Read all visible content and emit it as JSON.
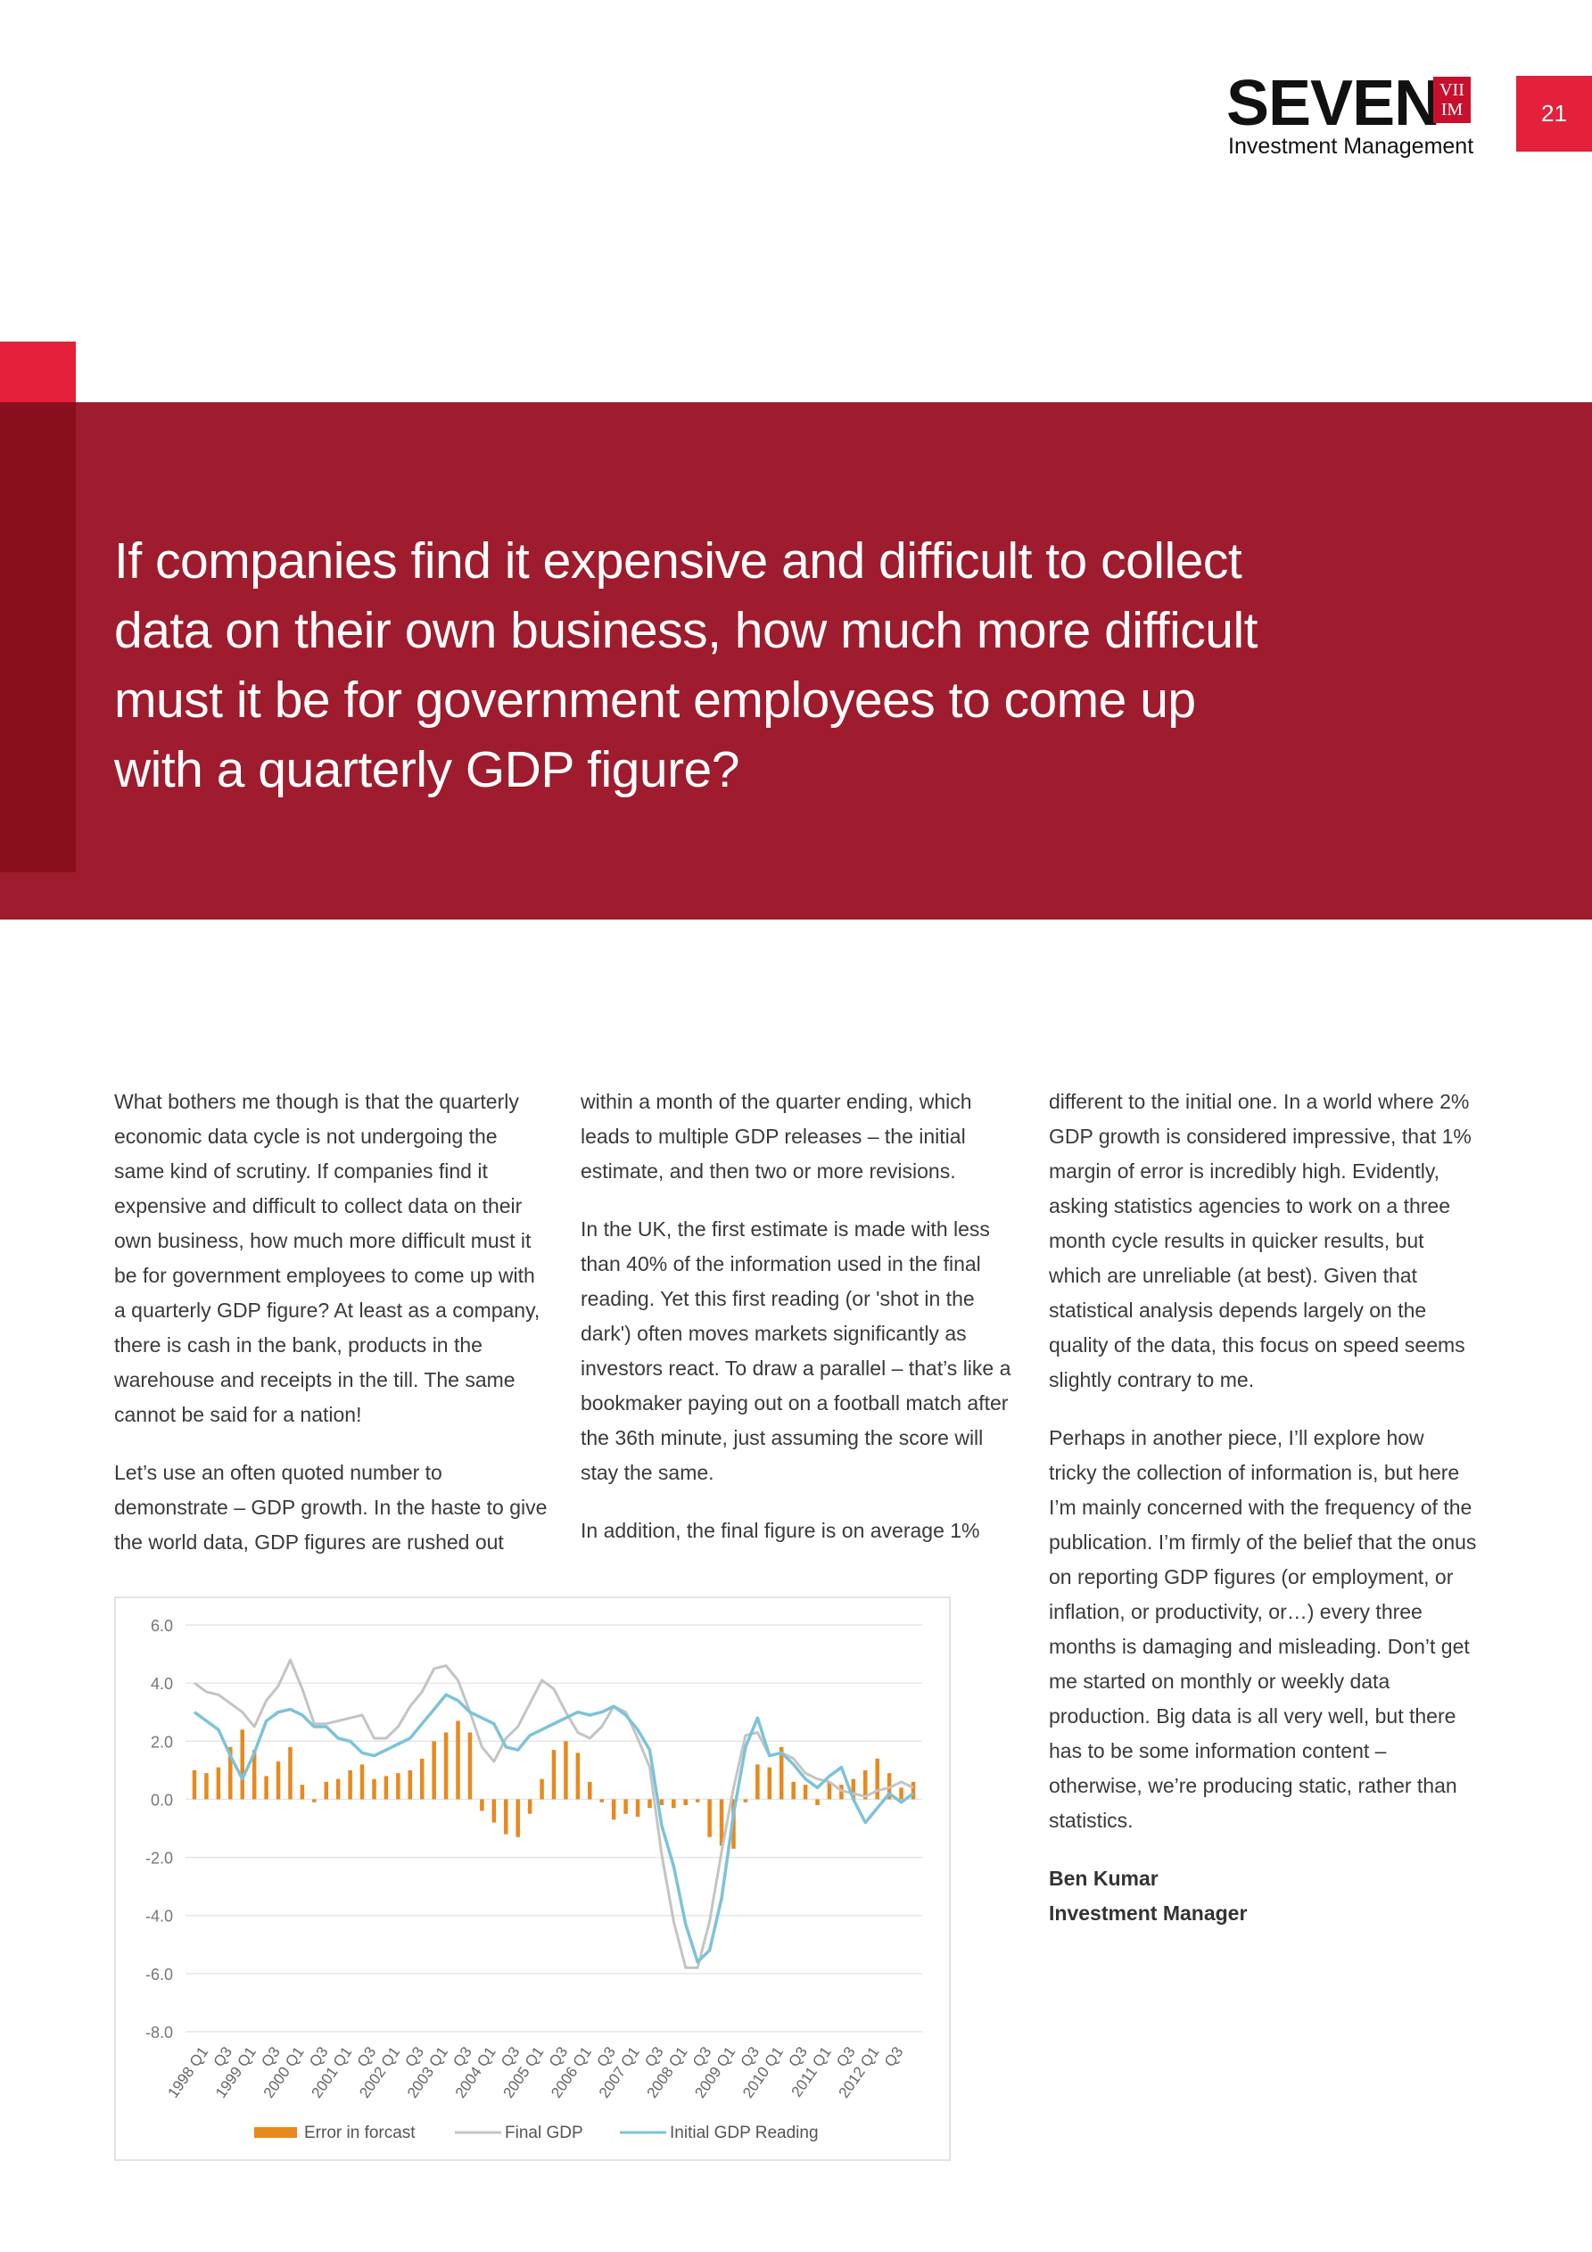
{
  "header": {
    "logo_word": "SEVEN",
    "logo_mark_top": "VII",
    "logo_mark_bottom": "IM",
    "logo_sub": "Investment Management",
    "page_number": "21",
    "brand_color": "#e4203a"
  },
  "banner": {
    "quote": "If companies find it expensive and difficult to collect data on their own business, how much more difficult must it be for government employees to come up with a quarterly GDP figure?",
    "background_color": "#9e1c2d"
  },
  "article": {
    "col1": [
      "What bothers me though is that the quarterly economic data cycle is not undergoing the same kind of scrutiny. If companies find it expensive and difficult to collect data on their own business, how much more difficult must it be for government employees to come up with a quarterly GDP figure? At least as a company, there is cash in the bank, products in the warehouse and receipts in the till. The same cannot be said for a nation!",
      "Let’s use an often quoted number to demonstrate – GDP growth. In the haste to give the world data, GDP figures are rushed out"
    ],
    "col2": [
      "within a month of the quarter ending, which leads to multiple GDP releases – the initial estimate, and then two or more revisions.",
      "In the UK, the first estimate is made with less than 40% of the information used in the final reading. Yet this first reading (or 'shot in the dark') often moves markets significantly as investors react. To draw a parallel – that’s like a bookmaker paying out on a football match after the 36th minute, just assuming the score will stay the same.",
      "In addition, the final figure is on average 1%"
    ],
    "col3": [
      "different to the initial one. In a world where 2% GDP growth is considered impressive, that 1% margin of error is incredibly high. Evidently, asking statistics agencies to work on a three month cycle results in quicker results, but which are unreliable (at best). Given that statistical analysis depends largely on the quality of the data, this focus on speed seems slightly contrary to me.",
      "Perhaps in another piece, I’ll explore how tricky the collection of information is, but here I’m mainly concerned with the frequency of the publication. I’m firmly of the belief that the onus on reporting GDP figures (or employment, or inflation, or productivity, or…) every three months is damaging and misleading. Don’t get me started on monthly or weekly data production. Big data is all very well, but there has to be some information content – otherwise, we’re producing static, rather than statistics."
    ],
    "author_name": "Ben Kumar",
    "author_title": "Investment Manager"
  },
  "chart_data": {
    "type": "bar",
    "title": "",
    "xlabel": "",
    "ylabel": "",
    "ylim": [
      -8.0,
      6.0
    ],
    "yticks": [
      "6.0",
      "4.0",
      "2.0",
      "0.0",
      "-2.0",
      "-4.0",
      "-6.0",
      "-8.0"
    ],
    "ytick_values": [
      6,
      4,
      2,
      0,
      -2,
      -4,
      -6,
      -8
    ],
    "grid": true,
    "legend_placement": "bottom",
    "x_tick_labels": [
      "1998 Q1",
      "Q3",
      "1999 Q1",
      "Q3",
      "2000 Q1",
      "Q3",
      "2001 Q1",
      "Q3",
      "2002 Q1",
      "Q3",
      "2003 Q1",
      "Q3",
      "2004 Q1",
      "Q3",
      "2005 Q1",
      "Q3",
      "2006 Q1",
      "Q3",
      "2007 Q1",
      "Q3",
      "2008 Q1",
      "Q3",
      "2009 Q1",
      "Q3",
      "2010 Q1",
      "Q3",
      "2011 Q1",
      "Q3",
      "2012 Q1",
      "Q3"
    ],
    "series": [
      {
        "name": "Error in forcast",
        "kind": "bar",
        "color": "#e8891e",
        "values": [
          1.0,
          0.9,
          1.1,
          1.8,
          2.4,
          1.7,
          0.8,
          1.3,
          1.8,
          0.5,
          -0.1,
          0.6,
          0.7,
          1.0,
          1.2,
          0.7,
          0.8,
          0.9,
          1.0,
          1.4,
          2.0,
          2.3,
          2.7,
          2.3,
          -0.4,
          -0.8,
          -1.2,
          -1.3,
          -0.5,
          0.7,
          1.7,
          2.0,
          1.6,
          0.6,
          -0.1,
          -0.7,
          -0.5,
          -0.6,
          -0.3,
          -0.2,
          -0.3,
          -0.2,
          -0.1,
          -1.3,
          -1.6,
          -1.7,
          -0.1,
          1.2,
          1.1,
          1.8,
          0.6,
          0.5,
          -0.2,
          0.6,
          0.5,
          0.7,
          1.0,
          1.4,
          0.9,
          0.4,
          0.6
        ]
      },
      {
        "name": "Final GDP",
        "kind": "line",
        "color": "#c4c4c4",
        "values": [
          4.0,
          3.7,
          3.6,
          3.3,
          3.0,
          2.5,
          3.4,
          3.9,
          4.8,
          3.8,
          2.6,
          2.6,
          2.7,
          2.8,
          2.9,
          2.1,
          2.1,
          2.5,
          3.2,
          3.7,
          4.5,
          4.6,
          4.1,
          3.0,
          1.8,
          1.3,
          2.1,
          2.5,
          3.3,
          4.1,
          3.8,
          3.0,
          2.3,
          2.1,
          2.5,
          3.2,
          3.0,
          2.1,
          1.1,
          -1.9,
          -4.2,
          -5.8,
          -5.8,
          -4.2,
          -1.8,
          0.4,
          2.2,
          2.3,
          1.5,
          1.6,
          1.4,
          0.9,
          0.7,
          0.6,
          0.3,
          0.2,
          0.1,
          0.3,
          0.4,
          0.6,
          0.4
        ]
      },
      {
        "name": "Initial GDP Reading",
        "kind": "line",
        "color": "#7cc3d8",
        "values": [
          3.0,
          2.7,
          2.4,
          1.5,
          0.7,
          1.6,
          2.7,
          3.0,
          3.1,
          2.9,
          2.5,
          2.5,
          2.1,
          2.0,
          1.6,
          1.5,
          1.7,
          1.9,
          2.1,
          2.6,
          3.1,
          3.6,
          3.4,
          3.0,
          2.8,
          2.6,
          1.8,
          1.7,
          2.2,
          2.4,
          2.6,
          2.8,
          3.0,
          2.9,
          3.0,
          3.2,
          2.9,
          2.4,
          1.7,
          -0.9,
          -2.3,
          -4.3,
          -5.6,
          -5.2,
          -3.4,
          -0.5,
          1.8,
          2.8,
          1.5,
          1.6,
          1.2,
          0.7,
          0.4,
          0.8,
          1.1,
          0.0,
          -0.8,
          -0.3,
          0.2,
          -0.1,
          0.2
        ]
      }
    ]
  }
}
